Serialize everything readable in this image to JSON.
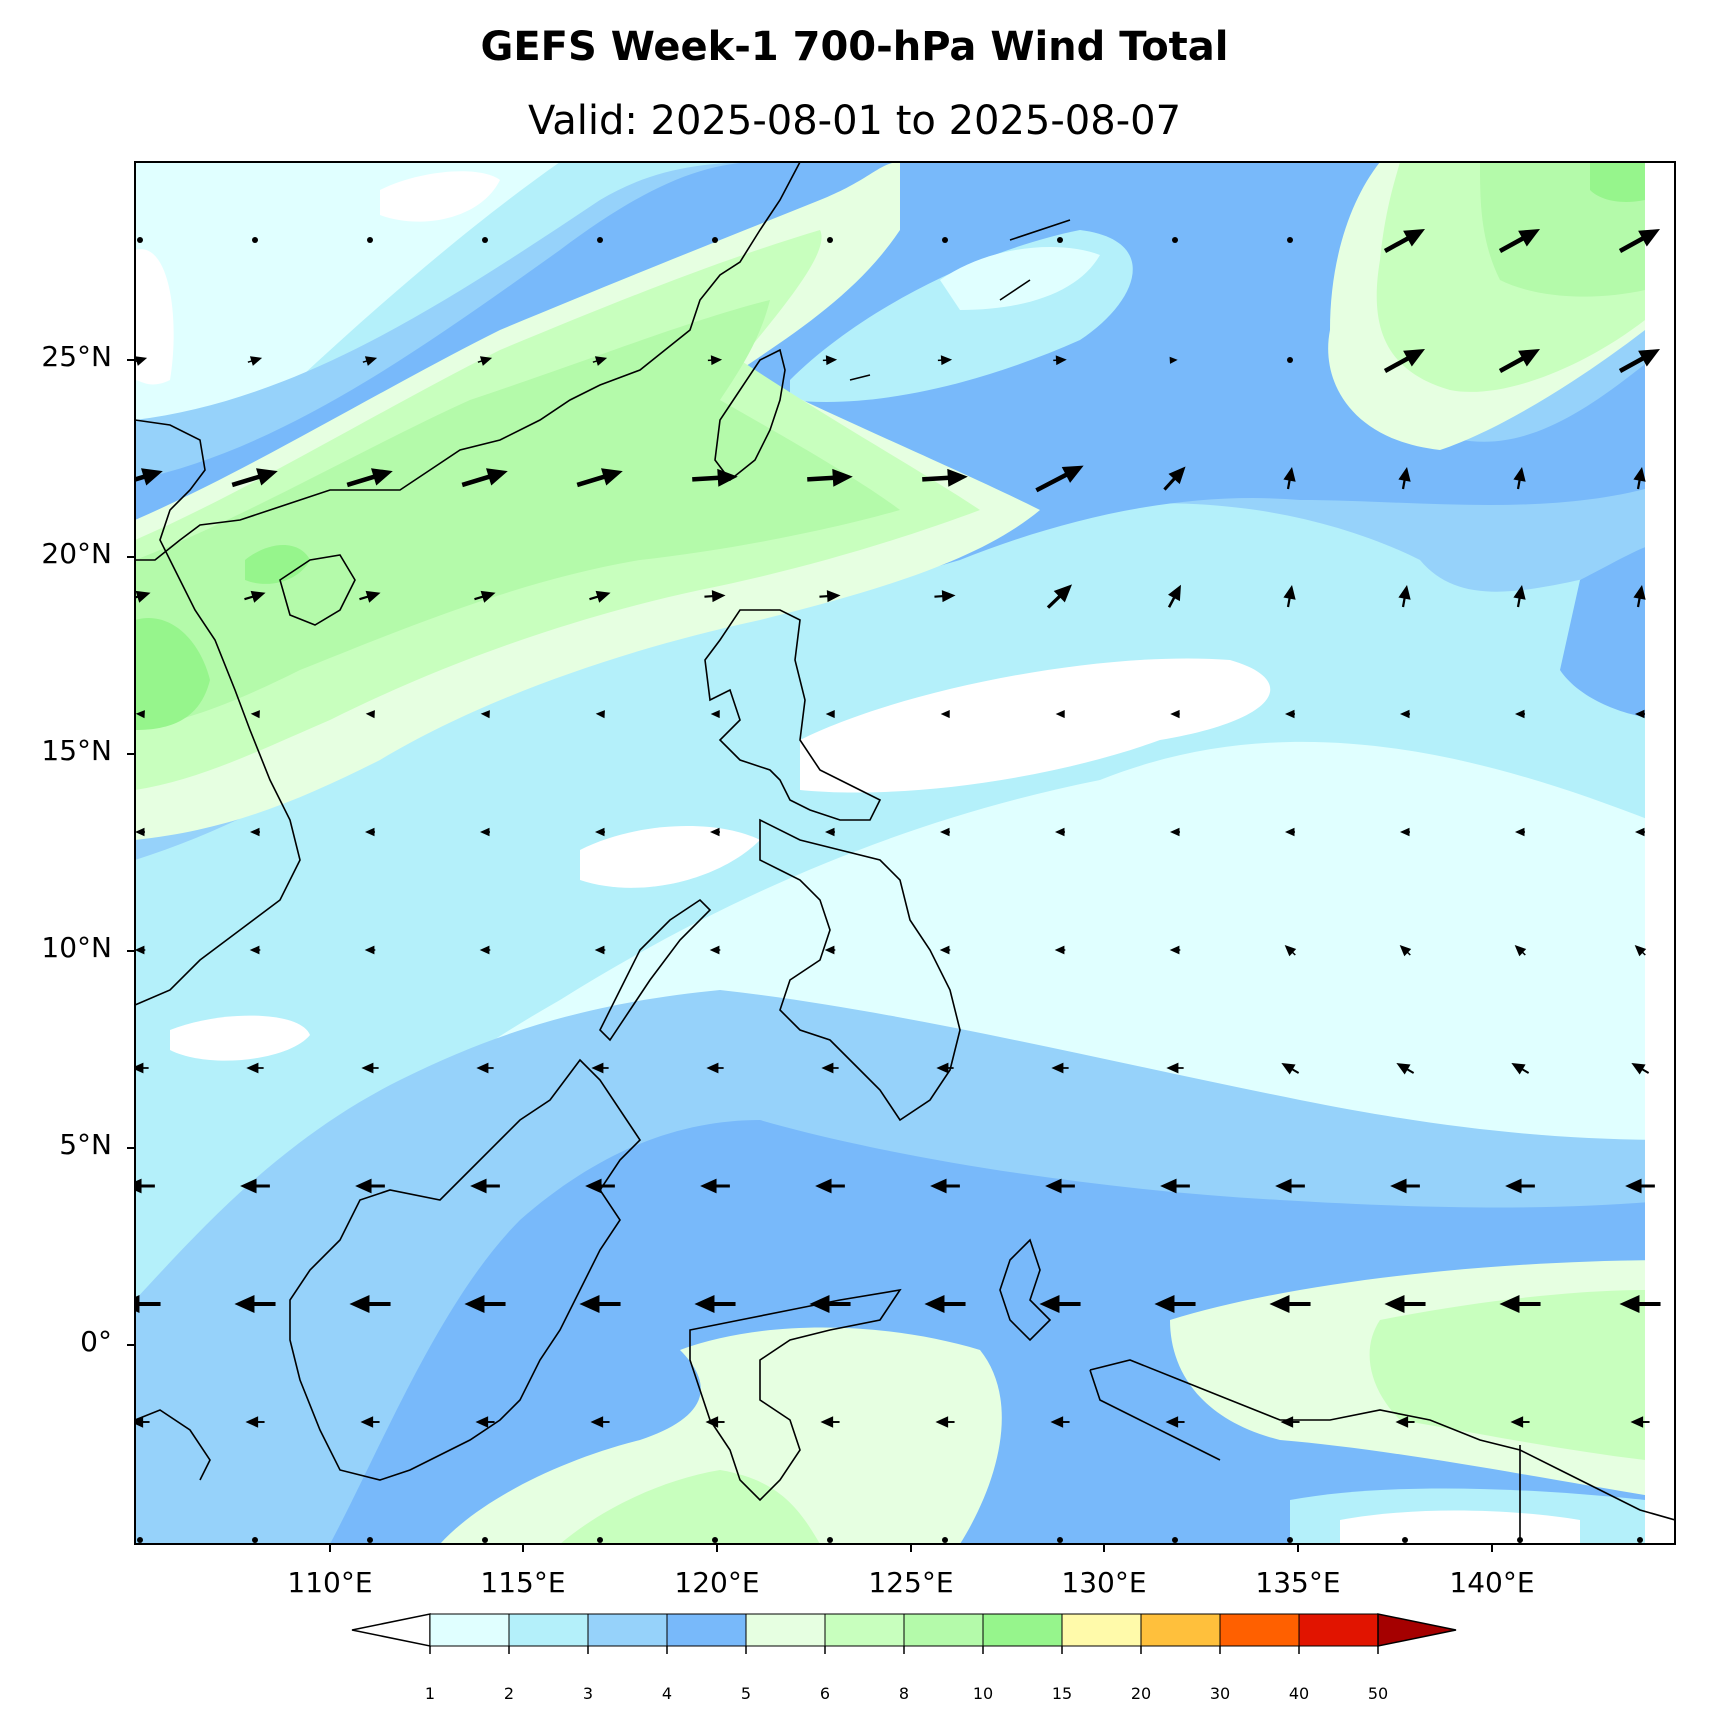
{
  "title": "GEFS Week-1 700-hPa Wind Total",
  "subtitle": "Valid: 2025-08-01 to 2025-08-07",
  "map": {
    "projection": "PlateCarree",
    "lon_range_deg": [
      105.5,
      145.0
    ],
    "lat_range_deg": [
      -5.0,
      30.0
    ],
    "lat_tick_labels": [
      "25°N",
      "20°N",
      "15°N",
      "10°N",
      "5°N",
      "0°"
    ],
    "lon_tick_labels": [
      "110°E",
      "115°E",
      "120°E",
      "125°E",
      "130°E",
      "135°E",
      "140°E"
    ],
    "field": "700-hPa wind speed (filled contours) with wind vectors",
    "prevailing_flow": "southwest monsoon flow over South China Sea to Philippine Sea; easterlies south of 15°N"
  },
  "colorbar": {
    "levels": [
      "1",
      "2",
      "3",
      "4",
      "5",
      "6",
      "8",
      "10",
      "15",
      "20",
      "30",
      "40",
      "50"
    ],
    "colors": [
      "#e0ffff",
      "#b4f0fa",
      "#96d2fa",
      "#78b9fa",
      "#e6ffe1",
      "#c8ffbe",
      "#b4faaa",
      "#96f58c",
      "#fffaaa",
      "#ffc03c",
      "#ff6000",
      "#e11400",
      "#a50000"
    ],
    "under_color": "#ffffff",
    "over_color": "#a50000",
    "extend": "both"
  }
}
